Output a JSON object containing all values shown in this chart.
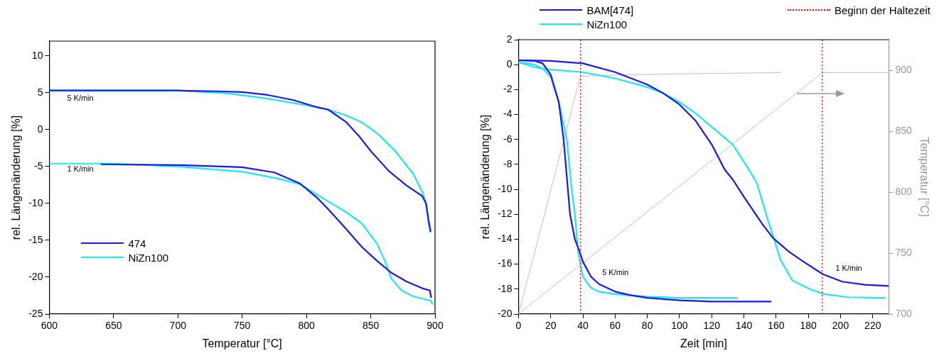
{
  "chart_data": [
    {
      "type": "line",
      "xlabel": "Temperatur [°C]",
      "ylabel": "rel. Längenänderung [%]",
      "xlim": [
        600,
        900
      ],
      "xticks": [
        600,
        650,
        700,
        750,
        800,
        850,
        900
      ],
      "ylim": [
        -25,
        12
      ],
      "yticks": [
        -25,
        -20,
        -15,
        -10,
        -5,
        0,
        5,
        10
      ],
      "grid": false,
      "legend": "bottom left",
      "marker": "none",
      "line_style": "solid",
      "series": [
        {
          "name": "474",
          "color": "#1a1ae6",
          "x": [
            600,
            650,
            700,
            730,
            750,
            770,
            790,
            805,
            817,
            831,
            841,
            850,
            864,
            878,
            890,
            893,
            895,
            896.5
          ],
          "values": [
            5.3,
            5.3,
            5.3,
            5.2,
            5.1,
            4.7,
            4.0,
            3.2,
            2.7,
            1.0,
            -0.9,
            -2.9,
            -5.6,
            -7.6,
            -9.0,
            -10,
            -12.3,
            -13.9
          ]
        },
        {
          "name": "NiZn100",
          "color": "#1ee6f0",
          "x": [
            600,
            650,
            700,
            740,
            770,
            800,
            817,
            830,
            843,
            855,
            869,
            883,
            890,
            893,
            895,
            897
          ],
          "values": [
            5.3,
            5.3,
            5.3,
            4.9,
            4.2,
            3.3,
            2.7,
            2.0,
            1.0,
            -0.5,
            -2.9,
            -6.0,
            -8.4,
            -10,
            -12.7,
            -13.7
          ]
        },
        {
          "color": "#1a1ae6",
          "x": [
            640,
            700,
            750,
            775,
            795,
            808,
            817,
            831,
            843,
            855,
            866,
            878,
            890,
            896,
            897
          ],
          "values": [
            -4.7,
            -4.8,
            -5.1,
            -5.8,
            -7.3,
            -9.2,
            -10.8,
            -13.5,
            -15.9,
            -17.8,
            -19.4,
            -20.6,
            -21.5,
            -21.8,
            -22.8
          ]
        },
        {
          "color": "#1ee6f0",
          "x": [
            600,
            650,
            700,
            750,
            780,
            795,
            808,
            831,
            843,
            855,
            861,
            866,
            874,
            883,
            897,
            898
          ],
          "values": [
            -4.6,
            -4.6,
            -5.0,
            -5.7,
            -6.7,
            -7.4,
            -8.8,
            -11.2,
            -12.7,
            -15.5,
            -17.8,
            -20.2,
            -21.8,
            -22.6,
            -23.2,
            -23.7
          ]
        }
      ],
      "annotations": [
        "5 K/min",
        "1 K/min"
      ]
    },
    {
      "type": "line",
      "xlabel": "Zeit [min]",
      "ylabel": "rel. Längenänderung [%]",
      "y2label": "Temperatur [°C]",
      "xlim": [
        0,
        230
      ],
      "xticks": [
        0,
        20,
        40,
        60,
        80,
        100,
        120,
        140,
        160,
        180,
        200,
        220
      ],
      "ylim": [
        -20,
        2
      ],
      "yticks": [
        -20,
        -18,
        -16,
        -14,
        -12,
        -10,
        -8,
        -6,
        -4,
        -2,
        0,
        2
      ],
      "y2lim": [
        700,
        925
      ],
      "y2ticks": [
        700,
        750,
        800,
        850,
        900
      ],
      "grid": false,
      "legend": "top",
      "marker": "none",
      "line_style": "solid",
      "series": [
        {
          "name": "BAM[474]",
          "color": "#1a1ae6",
          "x": [
            0,
            10,
            15,
            20,
            25,
            28,
            30,
            32,
            35,
            38,
            40,
            45,
            50,
            60,
            70,
            80,
            100,
            120,
            140,
            157
          ],
          "values": [
            0.35,
            0.3,
            0.1,
            -0.8,
            -3,
            -6,
            -9,
            -12,
            -14,
            -15,
            -15.8,
            -17,
            -17.6,
            -18.2,
            -18.5,
            -18.7,
            -18.9,
            -19,
            -19,
            -19
          ]
        },
        {
          "name": "NiZn100",
          "color": "#1ee6f0",
          "x": [
            0,
            10,
            15,
            20,
            25,
            30,
            33,
            35,
            37,
            40,
            45,
            50,
            60,
            80,
            100,
            136
          ],
          "values": [
            0.2,
            0,
            -0.3,
            -1,
            -3,
            -6,
            -10,
            -12,
            -15,
            -17,
            -17.9,
            -18.2,
            -18.4,
            -18.6,
            -18.7,
            -18.7
          ]
        },
        {
          "color": "#1a1ae6",
          "x": [
            0,
            20,
            40,
            60,
            80,
            90,
            100,
            110,
            120,
            128,
            133,
            140,
            151,
            158,
            168,
            177,
            189,
            201,
            215,
            230
          ],
          "values": [
            0.35,
            0.3,
            0.1,
            -0.6,
            -1.6,
            -2.3,
            -3.2,
            -4.5,
            -6.4,
            -8.4,
            -9.2,
            -10.6,
            -12.7,
            -13.9,
            -15.0,
            -15.8,
            -16.8,
            -17.4,
            -17.65,
            -17.75
          ]
        },
        {
          "color": "#1ee6f0",
          "x": [
            0,
            10,
            20,
            40,
            60,
            80,
            90,
            100,
            110,
            120,
            133,
            143,
            148,
            155,
            159,
            162.5,
            170,
            181,
            190,
            205,
            228
          ],
          "values": [
            0.2,
            -0.2,
            -0.4,
            -0.6,
            -1.1,
            -1.8,
            -2.3,
            -3.0,
            -3.9,
            -5.0,
            -6.4,
            -8.4,
            -9.5,
            -12.5,
            -14.1,
            -15.6,
            -17.3,
            -18,
            -18.4,
            -18.65,
            -18.7
          ]
        },
        {
          "color": "#c0c0c0",
          "axis": "y2",
          "x": [
            0,
            38.5,
            60,
            100,
            163
          ],
          "values": [
            700,
            895,
            896,
            897,
            898
          ]
        },
        {
          "color": "#c0c0c0",
          "axis": "y2",
          "x": [
            0,
            188.7,
            230
          ],
          "values": [
            700,
            898,
            898
          ]
        }
      ],
      "ref_lines": [
        {
          "axis": "x",
          "value": 38.5,
          "label": "Beginn der Haltezeit",
          "color": "#ff0000",
          "line_style": "dotted"
        },
        {
          "axis": "x",
          "value": 188.7,
          "color": "#ff0000",
          "line_style": "dotted"
        }
      ],
      "annotations": [
        "5 K/min",
        "1 K/min"
      ]
    }
  ]
}
